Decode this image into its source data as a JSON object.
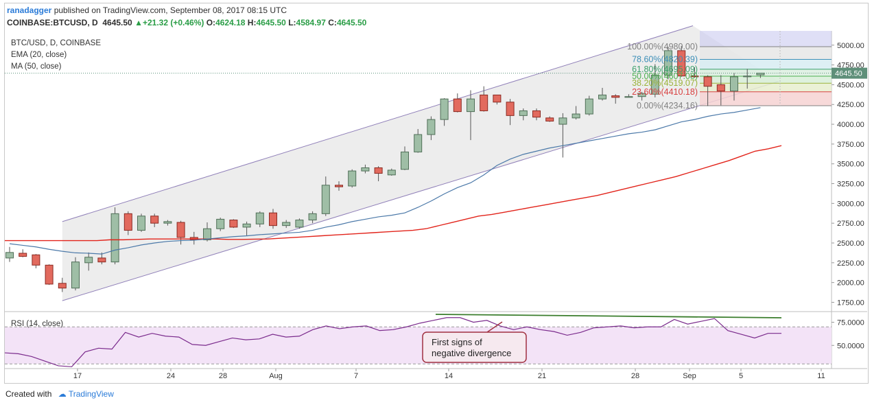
{
  "header": {
    "author": "ranadagger",
    "published": "published on TradingView.com, September 08, 2017 08:15 UTC",
    "symbol": "COINBASE:BTCUSD, D",
    "last": "4645.50",
    "change": "+21.32 (+0.46%)",
    "open_label": "O:",
    "open": "4624.18",
    "high_label": "H:",
    "high": "4645.50",
    "low_label": "L:",
    "low": "4584.97",
    "close_label": "C:",
    "close": "4645.50"
  },
  "legend": {
    "main": "BTC/USD, D, COINBASE",
    "ema": "EMA (20, close)",
    "ma": "MA (50, close)",
    "rsi": "RSI (14, close)"
  },
  "footer": {
    "created_with": "Created with",
    "brand": "TradingView"
  },
  "colors": {
    "up": "#9fbea6",
    "down": "#e26a5e",
    "ema": "#4a78a8",
    "ma": "#e2231a",
    "rsi": "#7a2a8c",
    "rsi_fill": "#f3e3f7",
    "divergence": "#3a7d2c",
    "channel": "#8f7fb8",
    "annotation_border": "#a03040"
  },
  "chart_data": {
    "type": "candlestick",
    "title": "BTC/USD, D, COINBASE",
    "x_ticks": [
      "17",
      "24",
      "28",
      "Aug",
      "7",
      "14",
      "21",
      "28",
      "Sep",
      "5",
      "11"
    ],
    "y_ticks": [
      "5000.00",
      "4750.00",
      "4500.00",
      "4250.00",
      "4000.00",
      "3750.00",
      "3500.00",
      "3250.00",
      "3000.00",
      "2750.00",
      "2500.00",
      "2250.00",
      "2000.00",
      "1750.00"
    ],
    "ylim": [
      1650,
      5180
    ],
    "last_price_label": "4645.50",
    "candles": [
      {
        "o": 2310,
        "h": 2450,
        "l": 2260,
        "c": 2380
      },
      {
        "o": 2370,
        "h": 2420,
        "l": 2320,
        "c": 2330
      },
      {
        "o": 2350,
        "h": 2360,
        "l": 2180,
        "c": 2220
      },
      {
        "o": 2220,
        "h": 2230,
        "l": 1970,
        "c": 1980
      },
      {
        "o": 1990,
        "h": 2060,
        "l": 1880,
        "c": 1930
      },
      {
        "o": 1930,
        "h": 2320,
        "l": 1900,
        "c": 2260
      },
      {
        "o": 2250,
        "h": 2380,
        "l": 2150,
        "c": 2320
      },
      {
        "o": 2310,
        "h": 2380,
        "l": 2230,
        "c": 2260
      },
      {
        "o": 2260,
        "h": 2950,
        "l": 2230,
        "c": 2870
      },
      {
        "o": 2870,
        "h": 2900,
        "l": 2600,
        "c": 2660
      },
      {
        "o": 2660,
        "h": 2870,
        "l": 2640,
        "c": 2840
      },
      {
        "o": 2840,
        "h": 2870,
        "l": 2700,
        "c": 2750
      },
      {
        "o": 2750,
        "h": 2790,
        "l": 2720,
        "c": 2770
      },
      {
        "o": 2760,
        "h": 2780,
        "l": 2480,
        "c": 2570
      },
      {
        "o": 2570,
        "h": 2640,
        "l": 2480,
        "c": 2540
      },
      {
        "o": 2540,
        "h": 2760,
        "l": 2520,
        "c": 2680
      },
      {
        "o": 2680,
        "h": 2820,
        "l": 2650,
        "c": 2800
      },
      {
        "o": 2790,
        "h": 2800,
        "l": 2690,
        "c": 2700
      },
      {
        "o": 2700,
        "h": 2770,
        "l": 2590,
        "c": 2740
      },
      {
        "o": 2740,
        "h": 2900,
        "l": 2700,
        "c": 2880
      },
      {
        "o": 2880,
        "h": 2930,
        "l": 2680,
        "c": 2720
      },
      {
        "o": 2720,
        "h": 2790,
        "l": 2690,
        "c": 2760
      },
      {
        "o": 2700,
        "h": 2810,
        "l": 2680,
        "c": 2790
      },
      {
        "o": 2790,
        "h": 2900,
        "l": 2750,
        "c": 2870
      },
      {
        "o": 2870,
        "h": 3340,
        "l": 2840,
        "c": 3230
      },
      {
        "o": 3230,
        "h": 3280,
        "l": 3160,
        "c": 3210
      },
      {
        "o": 3220,
        "h": 3430,
        "l": 3200,
        "c": 3410
      },
      {
        "o": 3410,
        "h": 3490,
        "l": 3380,
        "c": 3450
      },
      {
        "o": 3450,
        "h": 3470,
        "l": 3280,
        "c": 3380
      },
      {
        "o": 3360,
        "h": 3440,
        "l": 3350,
        "c": 3420
      },
      {
        "o": 3430,
        "h": 3720,
        "l": 3420,
        "c": 3650
      },
      {
        "o": 3650,
        "h": 3940,
        "l": 3640,
        "c": 3870
      },
      {
        "o": 3870,
        "h": 4100,
        "l": 3800,
        "c": 4060
      },
      {
        "o": 4060,
        "h": 4330,
        "l": 3980,
        "c": 4320
      },
      {
        "o": 4320,
        "h": 4390,
        "l": 4150,
        "c": 4160
      },
      {
        "o": 4160,
        "h": 4430,
        "l": 3800,
        "c": 4320
      },
      {
        "o": 4370,
        "h": 4480,
        "l": 4160,
        "c": 4170
      },
      {
        "o": 4370,
        "h": 4370,
        "l": 4250,
        "c": 4280
      },
      {
        "o": 4280,
        "h": 4320,
        "l": 3990,
        "c": 4110
      },
      {
        "o": 4110,
        "h": 4200,
        "l": 4050,
        "c": 4170
      },
      {
        "o": 4170,
        "h": 4200,
        "l": 4050,
        "c": 4090
      },
      {
        "o": 4080,
        "h": 4100,
        "l": 4030,
        "c": 4040
      },
      {
        "o": 4000,
        "h": 4140,
        "l": 3580,
        "c": 4080
      },
      {
        "o": 4080,
        "h": 4230,
        "l": 4060,
        "c": 4130
      },
      {
        "o": 4130,
        "h": 4360,
        "l": 4110,
        "c": 4320
      },
      {
        "o": 4320,
        "h": 4460,
        "l": 4300,
        "c": 4370
      },
      {
        "o": 4360,
        "h": 4380,
        "l": 4260,
        "c": 4340
      },
      {
        "o": 4340,
        "h": 4380,
        "l": 4340,
        "c": 4350
      },
      {
        "o": 4350,
        "h": 4410,
        "l": 4300,
        "c": 4390
      },
      {
        "o": 4380,
        "h": 4760,
        "l": 4340,
        "c": 4620
      },
      {
        "o": 4620,
        "h": 4980,
        "l": 4570,
        "c": 4930
      },
      {
        "o": 4930,
        "h": 4990,
        "l": 4600,
        "c": 4610
      },
      {
        "o": 4610,
        "h": 4720,
        "l": 4590,
        "c": 4600
      },
      {
        "o": 4600,
        "h": 4620,
        "l": 4230,
        "c": 4480
      },
      {
        "o": 4500,
        "h": 4620,
        "l": 4240,
        "c": 4420
      },
      {
        "o": 4420,
        "h": 4650,
        "l": 4300,
        "c": 4600
      },
      {
        "o": 4600,
        "h": 4700,
        "l": 4450,
        "c": 4610
      },
      {
        "o": 4624.18,
        "h": 4645.5,
        "l": 4584.97,
        "c": 4645.5
      }
    ],
    "ema20": [
      2490,
      2470,
      2450,
      2420,
      2395,
      2375,
      2370,
      2360,
      2410,
      2440,
      2475,
      2500,
      2520,
      2530,
      2535,
      2550,
      2565,
      2580,
      2590,
      2605,
      2615,
      2625,
      2635,
      2660,
      2700,
      2730,
      2770,
      2800,
      2830,
      2850,
      2880,
      2950,
      3030,
      3120,
      3200,
      3260,
      3360,
      3480,
      3560,
      3620,
      3660,
      3700,
      3730,
      3760,
      3790,
      3820,
      3850,
      3880,
      3900,
      3930,
      3980,
      4030,
      4060,
      4100,
      4130,
      4150,
      4180,
      4210
    ],
    "ma50": [
      2530,
      2530,
      2530,
      2530,
      2530,
      2530,
      2530,
      2530,
      2540,
      2540,
      2545,
      2550,
      2550,
      2550,
      2550,
      2550,
      2550,
      2545,
      2545,
      2548,
      2550,
      2560,
      2570,
      2580,
      2590,
      2600,
      2610,
      2620,
      2630,
      2640,
      2650,
      2660,
      2680,
      2720,
      2760,
      2800,
      2840,
      2860,
      2890,
      2920,
      2950,
      2980,
      3010,
      3040,
      3070,
      3100,
      3140,
      3180,
      3220,
      3260,
      3300,
      3340,
      3390,
      3440,
      3490,
      3540,
      3600,
      3660,
      3690,
      3730
    ],
    "channel": {
      "upper": [
        [
          4,
          2770
        ],
        [
          51,
          5200
        ]
      ],
      "lower": [
        [
          4,
          1770
        ],
        [
          56,
          4420
        ]
      ]
    },
    "fibonacci": {
      "levels": [
        {
          "label": "100.00%(4980.00)",
          "ratio": 1.0,
          "value": 4980.0,
          "color": "#808080"
        },
        {
          "label": "78.60%(4820.39)",
          "ratio": 0.786,
          "value": 4820.39,
          "color": "#3d8fb8"
        },
        {
          "label": "61.80%(4695.09)",
          "ratio": 0.618,
          "value": 4695.09,
          "color": "#3aa06a"
        },
        {
          "label": "50.00%(4607.08)",
          "ratio": 0.5,
          "value": 4607.08,
          "color": "#4caf50"
        },
        {
          "label": "38.20%(4519.07)",
          "ratio": 0.382,
          "value": 4519.07,
          "color": "#9bb33a"
        },
        {
          "label": "23.60%(4410.18)",
          "ratio": 0.236,
          "value": 4410.18,
          "color": "#d84040"
        },
        {
          "label": "0.00%(4234.16)",
          "ratio": 0.0,
          "value": 4234.16,
          "color": "#808080"
        }
      ]
    },
    "rsi": {
      "title": "RSI (14, close)",
      "y_ticks": [
        "75.0000",
        "50.0000"
      ],
      "ylim": [
        25,
        85
      ],
      "upper_band": 70,
      "lower_band": 30,
      "values": [
        42,
        41,
        38,
        33,
        28,
        27,
        43,
        47,
        46,
        64,
        59,
        63,
        60,
        59,
        51,
        50,
        54,
        58,
        56,
        57,
        62,
        59,
        60,
        67,
        71,
        68,
        70,
        71,
        66,
        67,
        70,
        74,
        77,
        80,
        80,
        75,
        77,
        71,
        67,
        70,
        67,
        65,
        61,
        64,
        69,
        70,
        71,
        69,
        70,
        70,
        78,
        73,
        76,
        79,
        66,
        62,
        58,
        63,
        63
      ],
      "divergence_lines": [
        {
          "from": [
            32,
            82
          ],
          "to": [
            56,
            78.5
          ]
        },
        {
          "from": [
            35,
            78
          ],
          "to": [
            36,
            71
          ]
        }
      ],
      "annotation": "First signs of\nnegative divergence"
    }
  }
}
